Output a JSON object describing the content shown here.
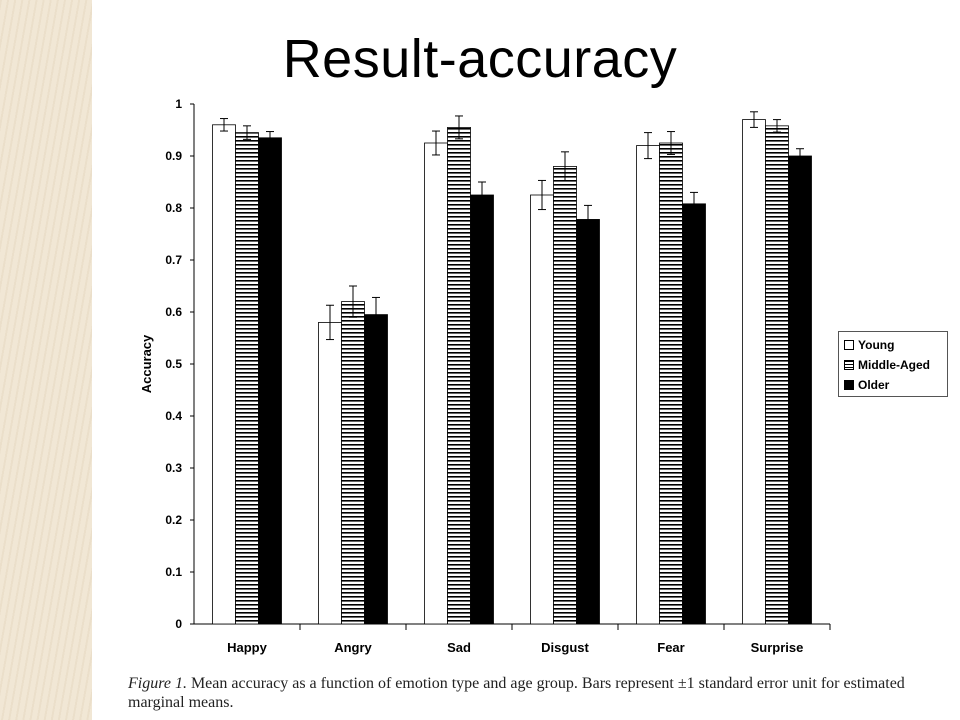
{
  "slide": {
    "title": "Result-accuracy",
    "caption_figure": "Figure 1.",
    "caption_text": " Mean accuracy as a function of emotion type and age group. Bars represent ±1 standard error unit for estimated marginal means."
  },
  "chart_data": {
    "type": "bar",
    "title": "",
    "xlabel": "",
    "ylabel": "Accuracy",
    "ylim": [
      0,
      1
    ],
    "yticks": [
      "0",
      "0.1",
      "0.2",
      "0.3",
      "0.4",
      "0.5",
      "0.6",
      "0.7",
      "0.8",
      "0.9",
      "1"
    ],
    "categories": [
      "Happy",
      "Angry",
      "Sad",
      "Disgust",
      "Fear",
      "Surprise"
    ],
    "legend_position": "right",
    "series": [
      {
        "name": "Young",
        "fill": "white",
        "values": [
          0.96,
          0.58,
          0.925,
          0.825,
          0.92,
          0.97
        ],
        "errors": [
          0.012,
          0.033,
          0.023,
          0.028,
          0.025,
          0.015
        ]
      },
      {
        "name": "Middle-Aged",
        "fill": "horizontal-stripes",
        "values": [
          0.945,
          0.62,
          0.955,
          0.88,
          0.925,
          0.958
        ],
        "errors": [
          0.013,
          0.03,
          0.022,
          0.028,
          0.022,
          0.012
        ]
      },
      {
        "name": "Older",
        "fill": "black",
        "values": [
          0.935,
          0.595,
          0.825,
          0.778,
          0.808,
          0.9
        ],
        "errors": [
          0.012,
          0.033,
          0.025,
          0.027,
          0.022,
          0.014
        ]
      }
    ]
  }
}
